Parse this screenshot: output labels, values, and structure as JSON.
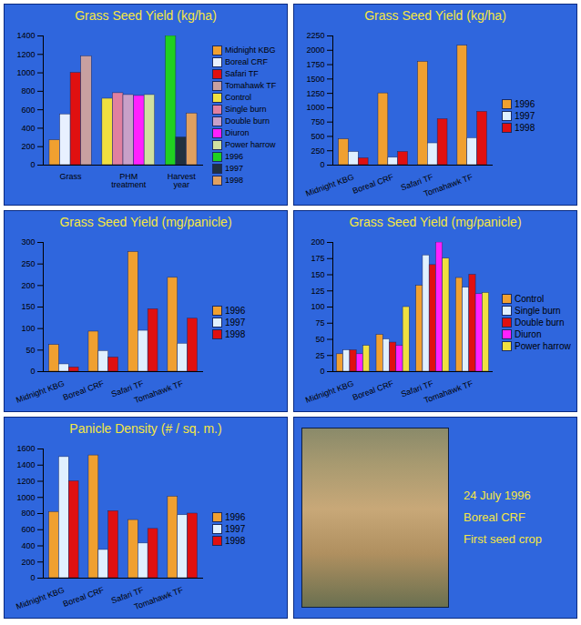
{
  "chart_data": [
    {
      "type": "bar",
      "title": "Grass Seed Yield (kg/ha)",
      "categories": [
        "Grass",
        "PHM treatment",
        "Harvest year"
      ],
      "series": [
        {
          "name": "Midnight KBG",
          "color": "#f0a030",
          "values": [
            270,
            null,
            null
          ]
        },
        {
          "name": "Boreal CRF",
          "color": "#e8f0ff",
          "values": [
            550,
            null,
            null
          ]
        },
        {
          "name": "Safari TF",
          "color": "#e01010",
          "values": [
            1000,
            null,
            null
          ]
        },
        {
          "name": "Tomahawk TF",
          "color": "#c8a0a0",
          "values": [
            1180,
            null,
            null
          ]
        },
        {
          "name": "Control",
          "color": "#f0e040",
          "values": [
            null,
            720,
            null
          ]
        },
        {
          "name": "Single burn",
          "color": "#e080a0",
          "values": [
            null,
            780,
            null
          ]
        },
        {
          "name": "Double burn",
          "color": "#c8a0c8",
          "values": [
            null,
            760,
            null
          ]
        },
        {
          "name": "Diuron",
          "color": "#ff20ff",
          "values": [
            null,
            750,
            null
          ]
        },
        {
          "name": "Power harrow",
          "color": "#d0e0a0",
          "values": [
            null,
            760,
            null
          ]
        },
        {
          "name": "1996",
          "color": "#20d020",
          "values": [
            null,
            null,
            1400
          ]
        },
        {
          "name": "1997",
          "color": "#203040",
          "values": [
            null,
            null,
            300
          ]
        },
        {
          "name": "1998",
          "color": "#e0a060",
          "values": [
            null,
            null,
            560
          ]
        }
      ],
      "ylim": [
        0,
        1400
      ],
      "yticks": [
        0,
        200,
        400,
        600,
        800,
        1000,
        1200,
        1400
      ],
      "grid": false,
      "legend": "right"
    },
    {
      "type": "bar",
      "title": "Grass Seed Yield (kg/ha)",
      "categories": [
        "Midnight KBG",
        "Boreal CRF",
        "Safari TF",
        "Tomahawk TF"
      ],
      "series": [
        {
          "name": "1996",
          "color": "#f0a030",
          "values": [
            450,
            1250,
            1800,
            2080
          ]
        },
        {
          "name": "1997",
          "color": "#e0f0ff",
          "values": [
            230,
            130,
            380,
            470
          ]
        },
        {
          "name": "1998",
          "color": "#e01010",
          "values": [
            120,
            230,
            800,
            930
          ]
        }
      ],
      "ylim": [
        0,
        2250
      ],
      "yticks": [
        0,
        250,
        500,
        750,
        1000,
        1250,
        1500,
        1750,
        2000,
        2250
      ],
      "grid": false,
      "legend": "right"
    },
    {
      "type": "bar",
      "title": "Grass Seed Yield (mg/panicle)",
      "categories": [
        "Midnight KBG",
        "Boreal CRF",
        "Safari TF",
        "Tomahawk TF"
      ],
      "series": [
        {
          "name": "1996",
          "color": "#f0a030",
          "values": [
            62,
            93,
            278,
            218
          ]
        },
        {
          "name": "1997",
          "color": "#e0f0ff",
          "values": [
            17,
            48,
            95,
            65
          ]
        },
        {
          "name": "1998",
          "color": "#e01010",
          "values": [
            10,
            33,
            145,
            123
          ]
        }
      ],
      "ylim": [
        0,
        300
      ],
      "yticks": [
        0,
        50,
        100,
        150,
        200,
        250,
        300
      ],
      "grid": false,
      "legend": "right"
    },
    {
      "type": "bar",
      "title": "Grass Seed Yield (mg/panicle)",
      "categories": [
        "Midnight KBG",
        "Boreal CRF",
        "Safari TF",
        "Tomahawk TF"
      ],
      "series": [
        {
          "name": "Control",
          "color": "#f0a030",
          "values": [
            27,
            57,
            133,
            145
          ]
        },
        {
          "name": "Single burn",
          "color": "#e0f0ff",
          "values": [
            33,
            50,
            180,
            130
          ]
        },
        {
          "name": "Double burn",
          "color": "#e01010",
          "values": [
            33,
            45,
            165,
            150
          ]
        },
        {
          "name": "Diuron",
          "color": "#ff20ff",
          "values": [
            27,
            40,
            200,
            120
          ]
        },
        {
          "name": "Power harrow",
          "color": "#f0e040",
          "values": [
            40,
            100,
            175,
            122
          ]
        }
      ],
      "ylim": [
        0,
        200
      ],
      "yticks": [
        0,
        25,
        50,
        75,
        100,
        125,
        150,
        175,
        200
      ],
      "grid": false,
      "legend": "right"
    },
    {
      "type": "bar",
      "title": "Panicle Density (# / sq. m.)",
      "categories": [
        "Midnight KBG",
        "Boreal CRF",
        "Safari TF",
        "Tomahawk TF"
      ],
      "series": [
        {
          "name": "1996",
          "color": "#f0a030",
          "values": [
            820,
            1520,
            720,
            1010
          ]
        },
        {
          "name": "1997",
          "color": "#e0f0ff",
          "values": [
            1500,
            350,
            430,
            780
          ]
        },
        {
          "name": "1998",
          "color": "#e01010",
          "values": [
            1200,
            830,
            610,
            800
          ]
        }
      ],
      "ylim": [
        0,
        1600
      ],
      "yticks": [
        0,
        200,
        400,
        600,
        800,
        1000,
        1200,
        1400,
        1600
      ],
      "grid": false,
      "legend": "right"
    }
  ],
  "photo_panel": {
    "lines": [
      "24 July 1996",
      "Boreal CRF",
      "First seed crop"
    ]
  }
}
